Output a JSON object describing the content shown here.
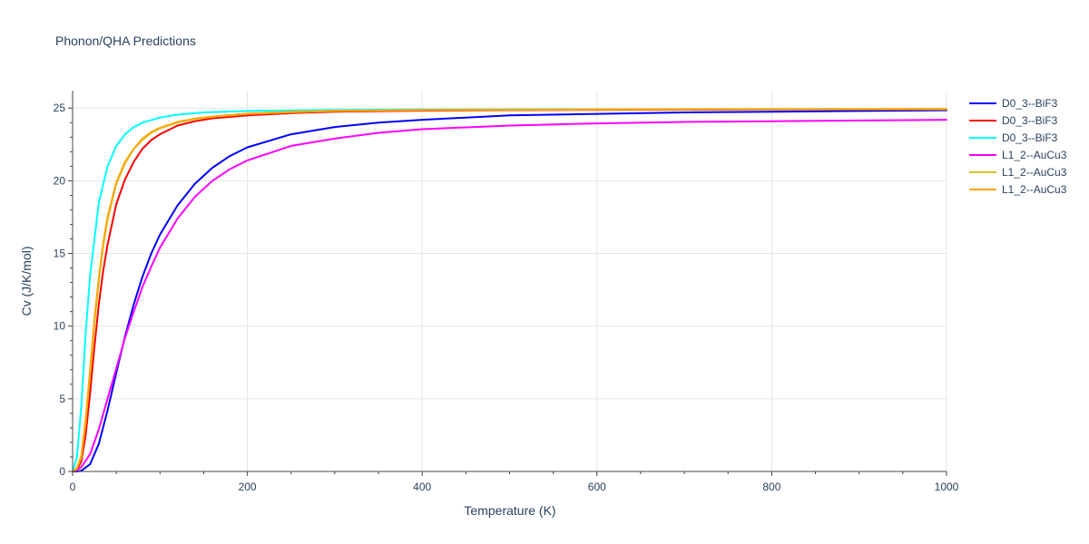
{
  "chart_data": {
    "type": "line",
    "title": "Phonon/QHA Predictions",
    "xlabel": "Temperature (K)",
    "ylabel": "Cv (J/K/mol)",
    "xlim": [
      0,
      1000
    ],
    "ylim": [
      0,
      26.2
    ],
    "x_ticks": [
      0,
      200,
      400,
      600,
      800,
      1000
    ],
    "y_ticks": [
      0,
      5,
      10,
      15,
      20,
      25
    ],
    "grid": true,
    "legend_position": "top-right",
    "series": [
      {
        "name": "D0_3--BiF3",
        "color": "#0000ff",
        "x": [
          0,
          5,
          10,
          20,
          30,
          40,
          50,
          60,
          70,
          80,
          90,
          100,
          120,
          140,
          160,
          180,
          200,
          250,
          300,
          350,
          400,
          500,
          600,
          700,
          800,
          900,
          1000
        ],
        "y": [
          0,
          0,
          0.05,
          0.5,
          1.9,
          4.2,
          6.8,
          9.3,
          11.5,
          13.4,
          15.0,
          16.3,
          18.3,
          19.8,
          20.9,
          21.7,
          22.3,
          23.2,
          23.7,
          24.0,
          24.2,
          24.5,
          24.6,
          24.7,
          24.75,
          24.8,
          24.85
        ]
      },
      {
        "name": "D0_3--BiF3",
        "color": "#ff0000",
        "x": [
          0,
          5,
          10,
          15,
          20,
          25,
          30,
          35,
          40,
          50,
          60,
          70,
          80,
          90,
          100,
          120,
          140,
          160,
          200,
          250,
          300,
          400,
          500,
          600,
          800,
          1000
        ],
        "y": [
          0,
          0.1,
          0.7,
          2.5,
          5.4,
          8.6,
          11.5,
          13.8,
          15.6,
          18.4,
          20.1,
          21.3,
          22.2,
          22.8,
          23.2,
          23.8,
          24.1,
          24.3,
          24.5,
          24.65,
          24.75,
          24.82,
          24.86,
          24.88,
          24.9,
          24.9
        ]
      },
      {
        "name": "D0_3--BiF3",
        "color": "#00ffff",
        "x": [
          0,
          5,
          10,
          15,
          20,
          30,
          40,
          50,
          60,
          70,
          80,
          100,
          120,
          150,
          200,
          300,
          400,
          600,
          800,
          1000
        ],
        "y": [
          0,
          1.0,
          4.5,
          9.5,
          13.5,
          18.5,
          21.0,
          22.4,
          23.2,
          23.7,
          24.0,
          24.35,
          24.55,
          24.7,
          24.8,
          24.87,
          24.9,
          24.92,
          24.93,
          24.93
        ]
      },
      {
        "name": "L1_2--AuCu3",
        "color": "#ff00ff",
        "x": [
          0,
          5,
          10,
          20,
          30,
          40,
          50,
          60,
          70,
          80,
          90,
          100,
          120,
          140,
          160,
          180,
          200,
          250,
          300,
          350,
          400,
          500,
          600,
          700,
          800,
          900,
          1000
        ],
        "y": [
          0,
          0.1,
          0.3,
          1.2,
          2.9,
          5.0,
          7.1,
          9.2,
          11.0,
          12.7,
          14.1,
          15.4,
          17.4,
          18.9,
          20.0,
          20.8,
          21.4,
          22.4,
          22.9,
          23.3,
          23.55,
          23.8,
          23.95,
          24.05,
          24.1,
          24.15,
          24.2
        ]
      },
      {
        "name": "L1_2--AuCu3",
        "color": "#d4c832",
        "x": [
          0,
          5,
          10,
          15,
          20,
          25,
          30,
          35,
          40,
          50,
          60,
          70,
          80,
          90,
          100,
          120,
          140,
          160,
          200,
          250,
          300,
          400,
          600,
          800,
          1000
        ],
        "y": [
          0,
          0.2,
          1.0,
          3.4,
          6.8,
          10.2,
          13.1,
          15.5,
          17.3,
          19.8,
          21.2,
          22.2,
          22.8,
          23.3,
          23.6,
          24.0,
          24.25,
          24.4,
          24.6,
          24.72,
          24.8,
          24.86,
          24.9,
          24.92,
          24.93
        ]
      },
      {
        "name": "L1_2--AuCu3",
        "color": "#ffa500",
        "x": [
          0,
          5,
          10,
          15,
          20,
          25,
          30,
          35,
          40,
          50,
          60,
          70,
          80,
          90,
          100,
          120,
          140,
          160,
          200,
          250,
          300,
          400,
          600,
          800,
          1000
        ],
        "y": [
          0,
          0.25,
          1.1,
          3.6,
          7.0,
          10.5,
          13.3,
          15.7,
          17.5,
          19.9,
          21.3,
          22.2,
          22.9,
          23.35,
          23.65,
          24.05,
          24.28,
          24.42,
          24.62,
          24.74,
          24.81,
          24.87,
          24.91,
          24.93,
          24.94
        ]
      }
    ]
  }
}
